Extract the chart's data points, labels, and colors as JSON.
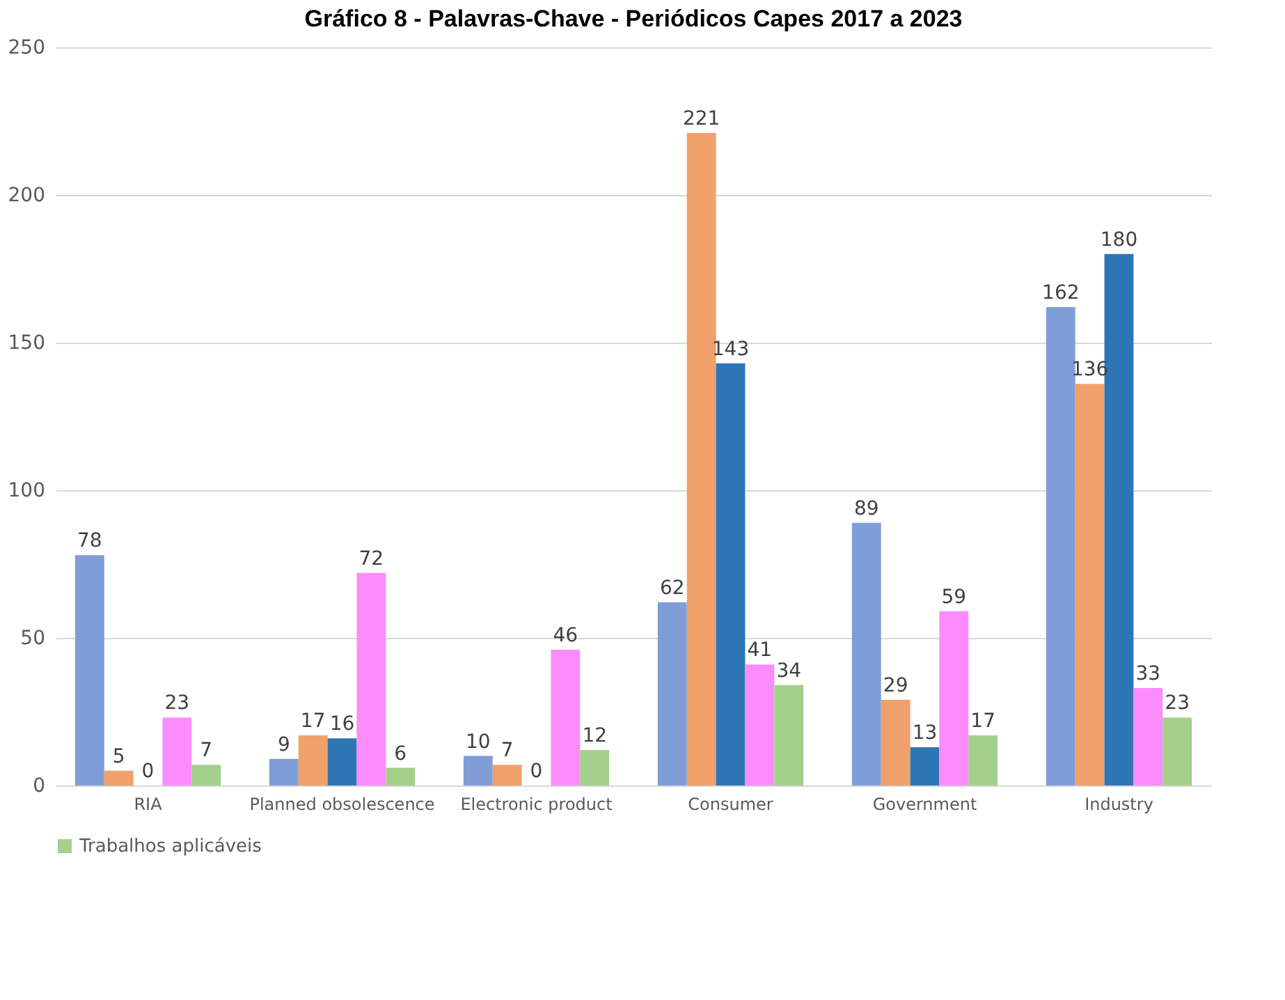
{
  "chart_data": {
    "type": "bar",
    "title": "Gráfico 8 - Palavras-Chave - Periódicos Capes 2017 a 2023",
    "categories": [
      "RIA",
      "Planned  obsolescence",
      "Electronic  product",
      "Consumer",
      "Government",
      "Industry"
    ],
    "series": [
      {
        "color": "#7f9ed8",
        "values": [
          78,
          9,
          10,
          62,
          89,
          162
        ]
      },
      {
        "color": "#f0a06a",
        "values": [
          5,
          17,
          7,
          221,
          29,
          136
        ]
      },
      {
        "color": "#2e75b6",
        "values": [
          0,
          16,
          0,
          143,
          13,
          180
        ]
      },
      {
        "color": "#fc8cfc",
        "values": [
          23,
          72,
          46,
          41,
          59,
          33
        ]
      },
      {
        "name": "Trabalhos aplicáveis",
        "color": "#a3d08a",
        "values": [
          7,
          6,
          12,
          34,
          17,
          23
        ]
      }
    ],
    "ylim": [
      0,
      250
    ],
    "yticks": [
      0,
      50,
      100,
      150,
      200,
      250
    ],
    "grid": "y",
    "legend": "bottom",
    "data_labels": true
  }
}
